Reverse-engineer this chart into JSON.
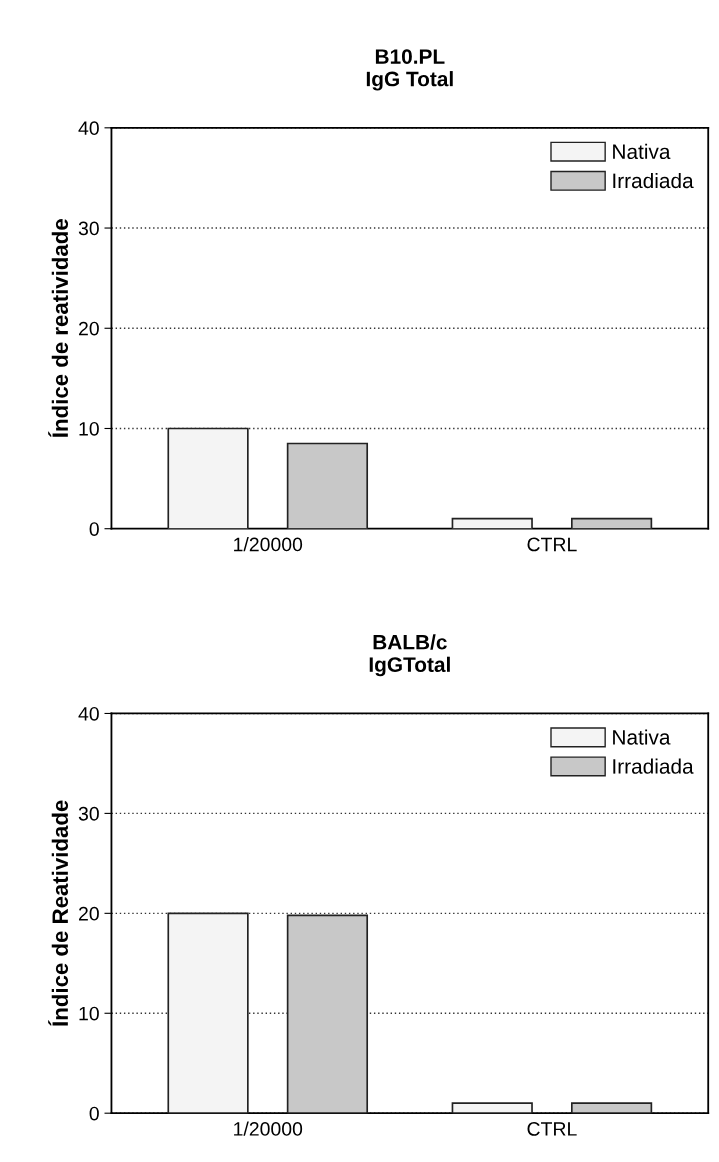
{
  "chart_data": [
    {
      "type": "bar",
      "title": "B10.PL\nIgG Total",
      "ylabel": "Índice de reatividade",
      "categories": [
        "1/20000",
        "CTRL"
      ],
      "series": [
        {
          "name": "Nativa",
          "color": "#f4f4f4",
          "values": [
            10,
            1.0
          ]
        },
        {
          "name": "Irradiada",
          "color": "#c8c8c8",
          "values": [
            8.5,
            1.0
          ]
        }
      ],
      "ylim": [
        0,
        40
      ],
      "yticks": [
        0,
        10,
        20,
        30,
        40
      ],
      "grid": "y",
      "legend": "top right"
    },
    {
      "type": "bar",
      "title": "BALB/c\nIgGTotal",
      "ylabel": "Índice de Reatividade",
      "categories": [
        "1/20000",
        "CTRL"
      ],
      "series": [
        {
          "name": "Nativa",
          "color": "#f4f4f4",
          "values": [
            20,
            1.0
          ]
        },
        {
          "name": "Irradiada",
          "color": "#c8c8c8",
          "values": [
            19.8,
            1.0
          ]
        }
      ],
      "ylim": [
        0,
        40
      ],
      "yticks": [
        0,
        10,
        20,
        30,
        40
      ],
      "grid": "y",
      "legend": "top right"
    }
  ]
}
